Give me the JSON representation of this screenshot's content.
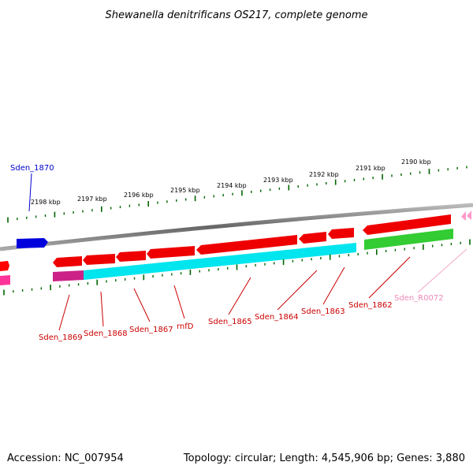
{
  "title": "Shewanella denitrificans OS217, complete genome",
  "footer": {
    "accession": "Accession: NC_007954",
    "summary": "Topology: circular; Length: 4,545,906 bp; Genes: 3,880"
  },
  "colors": {
    "cds_forward": "#ff0000",
    "cds_reverse": "#ff0000",
    "selected_gene": "#0000dd",
    "rna_gene": "#ff66bb",
    "cyan_feature": "#00ffff",
    "green_feature": "#33cc33",
    "magenta_feature": "#cc2288",
    "backbone": "#808080",
    "tick": "#006600",
    "gene_label": "#cc0000",
    "rna_label": "#ee88bb",
    "selected_label": "#0000cc"
  },
  "kbp_ticks": [
    "2198 kbp",
    "2197 kbp",
    "2196 kbp",
    "2195 kbp",
    "2194 kbp",
    "2193 kbp",
    "2192 kbp",
    "2191 kbp",
    "2190 kbp"
  ],
  "selected_gene_label": "Sden_1870",
  "gene_labels": [
    "Sden_1869",
    "Sden_1868",
    "Sden_1867",
    "rnfD",
    "Sden_1865",
    "Sden_1864",
    "Sden_1863",
    "Sden_1862"
  ],
  "rna_label": "Sden_R0072"
}
